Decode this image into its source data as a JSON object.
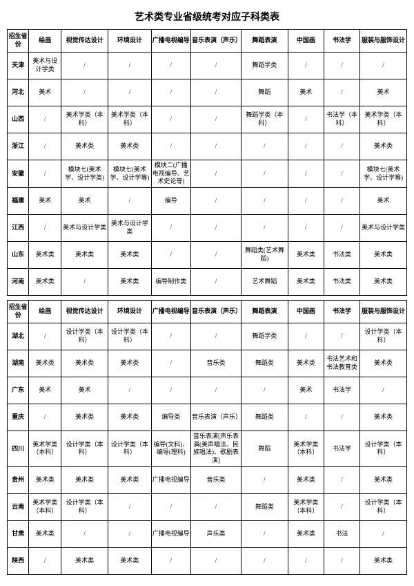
{
  "title": "艺术类专业省级统考对应子科类表",
  "columns": [
    "招生省份",
    "绘画",
    "视觉传达设计",
    "环境设计",
    "广播电视编导",
    "音乐表演（声乐）",
    "舞蹈表演",
    "中国画",
    "书法学",
    "服装与服饰设计"
  ],
  "table1": [
    [
      "天津",
      "美术与设计学类",
      "/",
      "/",
      "/",
      "/",
      "舞蹈学类",
      "/",
      "/",
      "/"
    ],
    [
      "河北",
      "美术",
      "/",
      "/",
      "/",
      "/",
      "舞蹈",
      "美术",
      "/",
      "美术"
    ],
    [
      "山西",
      "/",
      "美术学类（本科）",
      "美术学类（本科）",
      "/",
      "/",
      "舞蹈学类（本科）",
      "/",
      "书法学（本科）",
      "美术学类（本科）"
    ],
    [
      "浙江",
      "/",
      "美术类",
      "美术类",
      "/",
      "/",
      "/",
      "/",
      "/",
      "美术类"
    ],
    [
      "安徽",
      "/",
      "模块七(美术学、设计学类)",
      "模块七(美术学、设计学等)",
      "模块二(广播电视编导、艺术史论等)",
      "/",
      "/",
      "/",
      "/",
      "模块七(美术学、设计学等)"
    ],
    [
      "福建",
      "美术",
      "美术",
      "/",
      "编导",
      "/",
      "/",
      "/",
      "/",
      "美术"
    ],
    [
      "江西",
      "/",
      "美术与设计学类",
      "美术与设计学类",
      "/",
      "/",
      "/",
      "/",
      "/",
      "美术与设计学类"
    ],
    [
      "山东",
      "美术类",
      "美术类",
      "美术类",
      "/",
      "/",
      "舞蹈类(艺术舞蹈)",
      "美术类",
      "书法类",
      "美术类"
    ],
    [
      "河南",
      "美术类",
      "/",
      "美术类",
      "编导制作类",
      "/",
      "艺术舞蹈",
      "美术类",
      "书法类",
      "美术类"
    ]
  ],
  "table2": [
    [
      "湖北",
      "/",
      "设计学类（本科）",
      "设计学类（本科）",
      "/",
      "/",
      "舞蹈学类",
      "/",
      "/",
      "设计学类（本科）"
    ],
    [
      "湖南",
      "美术类",
      "美术类",
      "美术类",
      "/",
      "音乐类",
      "舞蹈类",
      "美术类",
      "书法艺术和书法教育类",
      "美术类"
    ],
    [
      "广东",
      "美术",
      "美术",
      "/",
      "/",
      "/",
      "/",
      "美术",
      "书法学",
      "/"
    ],
    [
      "重庆",
      "/",
      "美术类",
      "美术类",
      "编导类",
      "音乐表演（声乐）",
      "舞蹈类",
      "/",
      "/",
      "美术类"
    ],
    [
      "四川",
      "美术学类（本科）",
      "设计学类（本科）",
      "设计学类（本科）",
      "编导(文科)、编导(理科)",
      "音乐表演[声乐表演(美声唱法、民族唱法)、歌剧表演]",
      "舞蹈",
      "美术学类（本科）",
      "书法学",
      "设计学类（本科）"
    ],
    [
      "贵州",
      "美术类",
      "美术类",
      "美术类",
      "广播电视编导",
      "音乐类",
      "/",
      "美术类",
      "/",
      "美术类"
    ],
    [
      "云南",
      "美术学类（本科）",
      "设计学类（本科）",
      "/",
      "/",
      "/",
      "舞蹈类",
      "美术学类（本科）",
      "/",
      "设计学类（本科）"
    ],
    [
      "甘肃",
      "美术类",
      "/",
      "/",
      "广播电视编导",
      "声乐类",
      "/",
      "美术类",
      "书法",
      "/"
    ],
    [
      "陕西",
      "/",
      "美术类",
      "美术类",
      "/",
      "/",
      "/",
      "/",
      "/",
      "美术类"
    ]
  ]
}
